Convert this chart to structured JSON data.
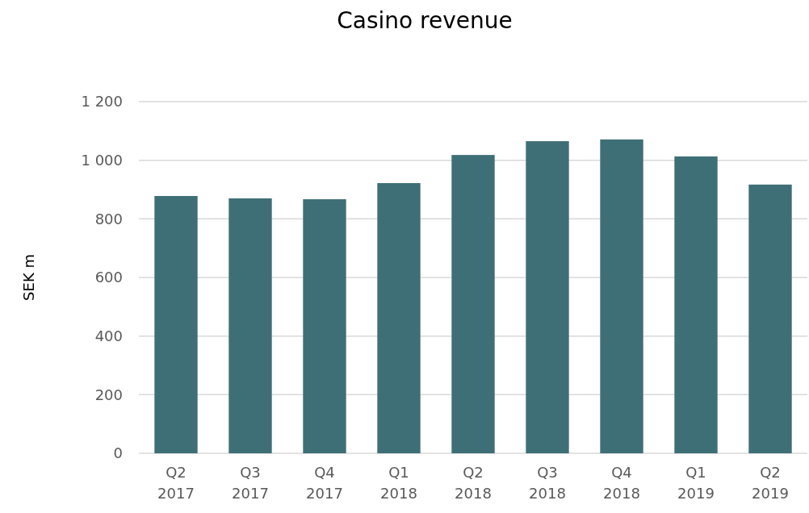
{
  "chart_data": {
    "type": "bar",
    "title": "Casino revenue",
    "ylabel": "SEK m",
    "categories": [
      "Q2 2017",
      "Q3 2017",
      "Q4 2017",
      "Q1 2018",
      "Q2 2018",
      "Q3 2018",
      "Q4 2018",
      "Q1 2019",
      "Q2 2019"
    ],
    "values": [
      878,
      870,
      867,
      922,
      1018,
      1065,
      1071,
      1013,
      917
    ],
    "color": "#3f6f76",
    "ylim": [
      0,
      1200
    ],
    "yticks": [
      0,
      200,
      400,
      600,
      800,
      {
        "value": 1000,
        "label": "1 000"
      },
      {
        "value": 1200,
        "label": "1 200"
      }
    ],
    "grid": "y"
  }
}
